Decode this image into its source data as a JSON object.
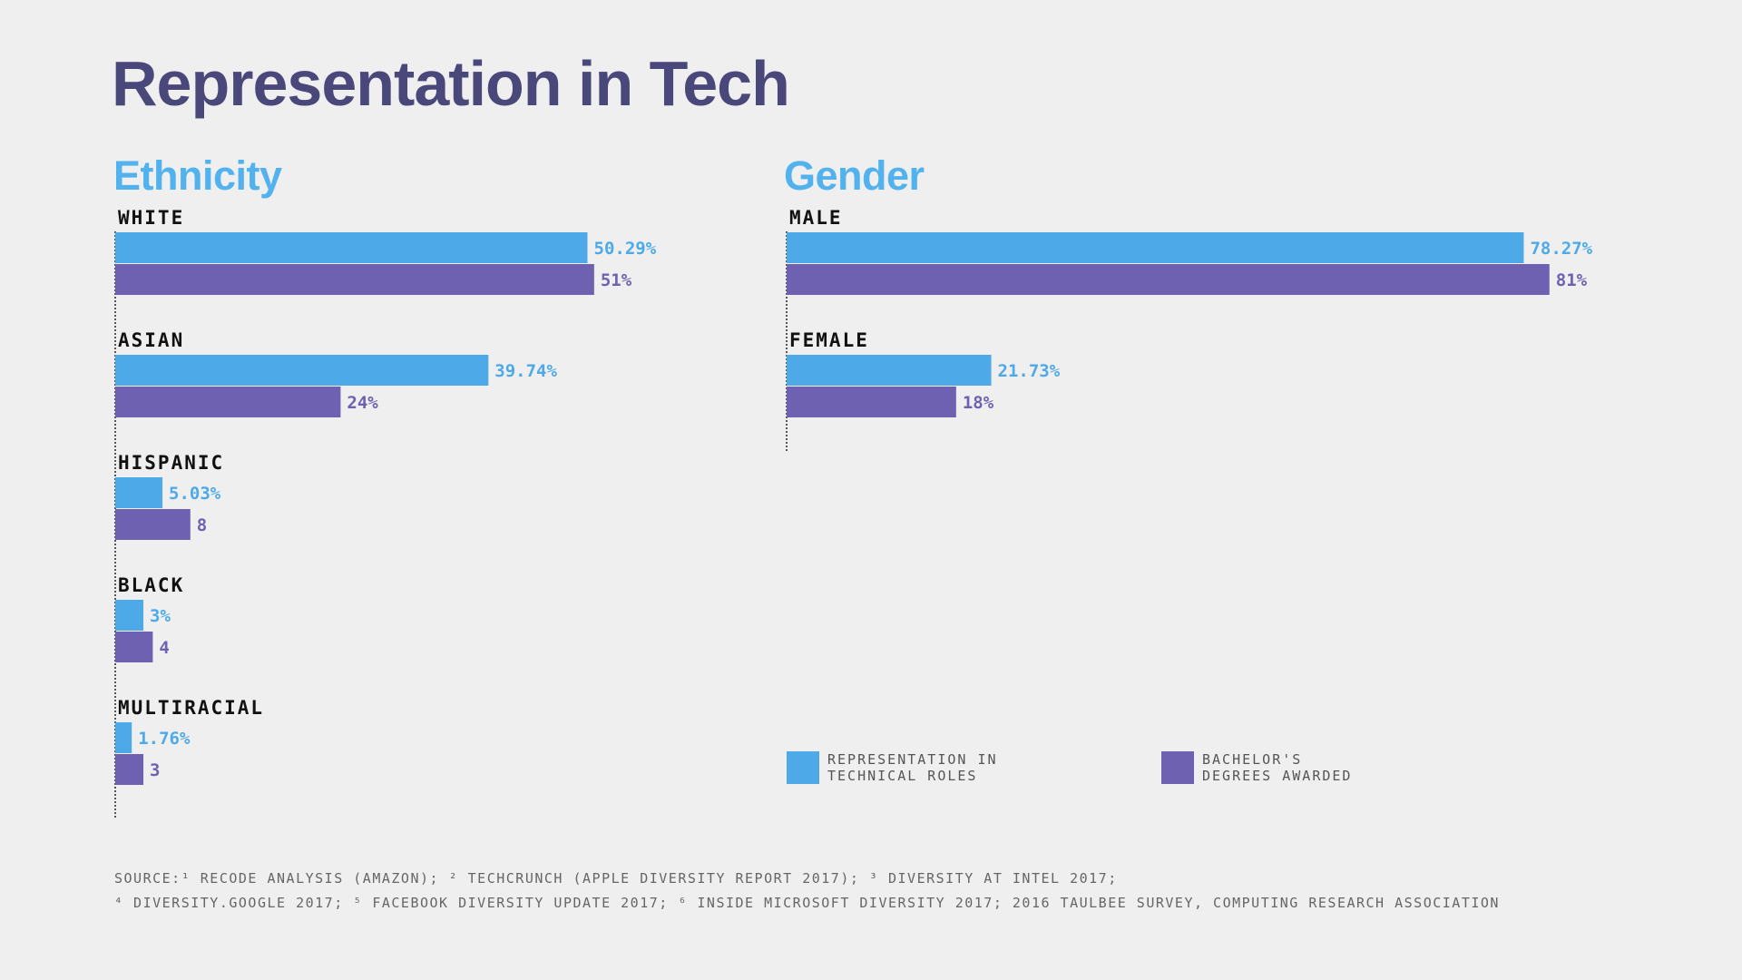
{
  "title": "Representation in Tech",
  "colors": {
    "representation": "#4da9e7",
    "degrees": "#6f61b2",
    "title": "#4a477a",
    "section_title": "#52b2ee"
  },
  "chart_data": [
    {
      "type": "bar",
      "orientation": "horizontal",
      "title": "Ethnicity",
      "categories": [
        "WHITE",
        "ASIAN",
        "HISPANIC",
        "BLACK",
        "MULTIRACIAL"
      ],
      "series": [
        {
          "name": "REPRESENTATION IN TECHNICAL ROLES",
          "values": [
            50.29,
            39.74,
            5.03,
            3,
            1.76
          ],
          "labels": [
            "50.29%",
            "39.74%",
            "5.03%",
            "3%",
            "1.76%"
          ]
        },
        {
          "name": "BACHELOR'S DEGREES AWARDED",
          "values": [
            51,
            24,
            8,
            4,
            3
          ],
          "labels": [
            "51%",
            "24%",
            "8",
            "4",
            "3"
          ]
        }
      ],
      "xlim": [
        0,
        100
      ]
    },
    {
      "type": "bar",
      "orientation": "horizontal",
      "title": "Gender",
      "categories": [
        "MALE",
        "FEMALE"
      ],
      "series": [
        {
          "name": "REPRESENTATION IN TECHNICAL ROLES",
          "values": [
            78.27,
            21.73
          ],
          "labels": [
            "78.27%",
            "21.73%"
          ]
        },
        {
          "name": "BACHELOR'S DEGREES AWARDED",
          "values": [
            81,
            18
          ],
          "labels": [
            "81%",
            "18%"
          ]
        }
      ],
      "xlim": [
        0,
        100
      ]
    }
  ],
  "legend": [
    {
      "text": "REPRESENTATION IN\nTECHNICAL ROLES",
      "color": "#4da9e7"
    },
    {
      "text": "BACHELOR'S\nDEGREES AWARDED",
      "color": "#6f61b2"
    }
  ],
  "source": {
    "line1": "SOURCE:¹ RECODE ANALYSIS (AMAZON); ² TECHCRUNCH (APPLE DIVERSITY REPORT 2017); ³ DIVERSITY AT INTEL 2017;",
    "line2": "⁴ DIVERSITY.GOOGLE 2017; ⁵ FACEBOOK DIVERSITY UPDATE 2017; ⁶ INSIDE MICROSOFT DIVERSITY 2017; 2016 TAULBEE SURVEY, COMPUTING RESEARCH ASSOCIATION"
  }
}
